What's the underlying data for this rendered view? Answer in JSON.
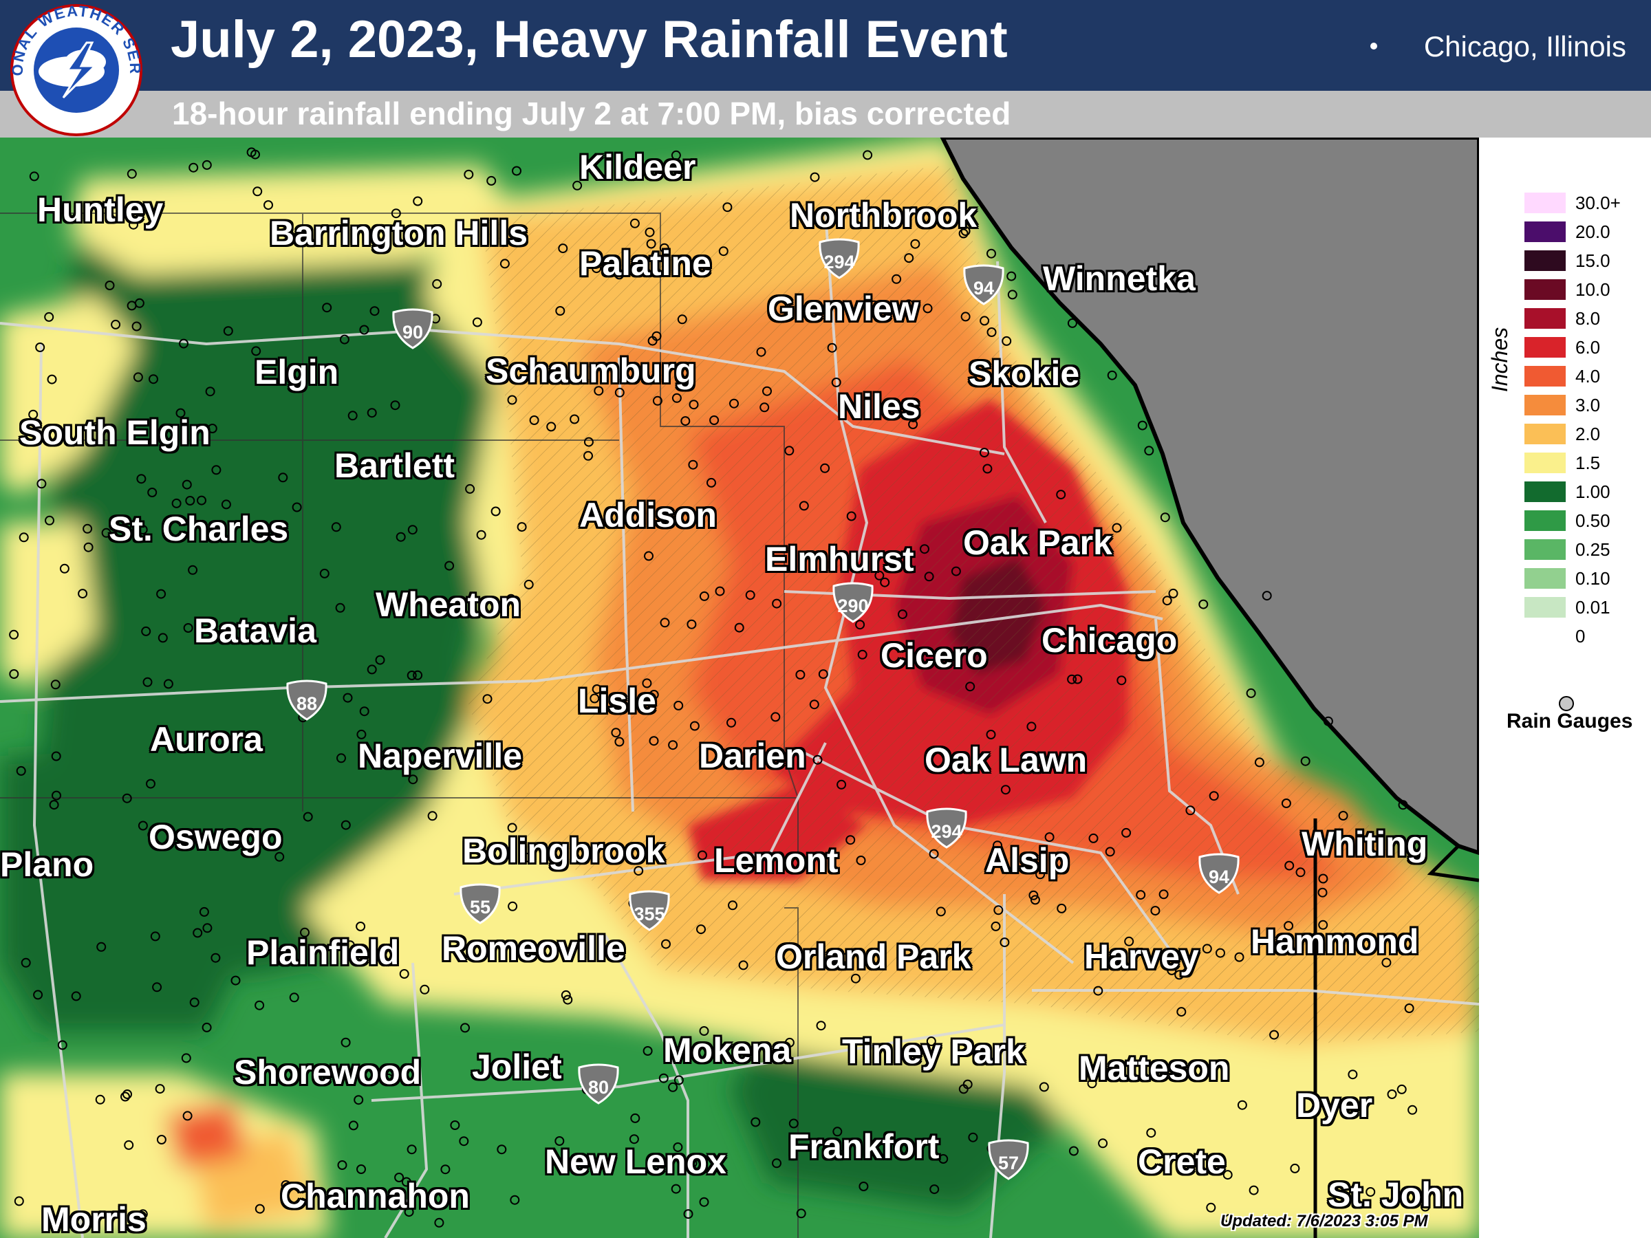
{
  "header": {
    "title": "July 2, 2023, Heavy Rainfall Event",
    "subtitle": "18-hour rainfall ending July 2 at 7:00 PM, bias corrected",
    "location": "Chicago, Illinois",
    "logo_text": "NATIONAL WEATHER SERVICE"
  },
  "cities": [
    {
      "name": "Huntley"
    },
    {
      "name": "Barrington Hills"
    },
    {
      "name": "Kildeer"
    },
    {
      "name": "Palatine"
    },
    {
      "name": "Northbrook"
    },
    {
      "name": "Winnetka"
    },
    {
      "name": "Glenview"
    },
    {
      "name": "Elgin"
    },
    {
      "name": "Schaumburg"
    },
    {
      "name": "Niles"
    },
    {
      "name": "Skokie"
    },
    {
      "name": "South Elgin"
    },
    {
      "name": "Bartlett"
    },
    {
      "name": "Addison"
    },
    {
      "name": "St. Charles"
    },
    {
      "name": "Elmhurst"
    },
    {
      "name": "Oak Park"
    },
    {
      "name": "Wheaton"
    },
    {
      "name": "Batavia"
    },
    {
      "name": "Chicago"
    },
    {
      "name": "Cicero"
    },
    {
      "name": "Lisle"
    },
    {
      "name": "Aurora"
    },
    {
      "name": "Naperville"
    },
    {
      "name": "Darien"
    },
    {
      "name": "Oak Lawn"
    },
    {
      "name": "Oswego"
    },
    {
      "name": "Plano"
    },
    {
      "name": "Bolingbrook"
    },
    {
      "name": "Lemont"
    },
    {
      "name": "Alsip"
    },
    {
      "name": "Whiting"
    },
    {
      "name": "Plainfield"
    },
    {
      "name": "Romeoville"
    },
    {
      "name": "Orland Park"
    },
    {
      "name": "Harvey"
    },
    {
      "name": "Hammond"
    },
    {
      "name": "Shorewood"
    },
    {
      "name": "Joliet"
    },
    {
      "name": "Mokena"
    },
    {
      "name": "Tinley Park"
    },
    {
      "name": "Matteson"
    },
    {
      "name": "Dyer"
    },
    {
      "name": "New Lenox"
    },
    {
      "name": "Frankfort"
    },
    {
      "name": "Crete"
    },
    {
      "name": "Channahon"
    },
    {
      "name": "Morris"
    },
    {
      "name": "St. John"
    }
  ],
  "interstates": [
    "294",
    "94",
    "90",
    "290",
    "88",
    "294",
    "94",
    "55",
    "355",
    "80",
    "57"
  ],
  "legend": {
    "unit": "Inches",
    "entries": [
      {
        "label": "30.0+",
        "color": "#ffd9ff"
      },
      {
        "label": "20.0",
        "color": "#4b0d6b"
      },
      {
        "label": "15.0",
        "color": "#2e0a1f"
      },
      {
        "label": "10.0",
        "color": "#6b0a24"
      },
      {
        "label": "8.0",
        "color": "#a8102a"
      },
      {
        "label": "6.0",
        "color": "#d9232a"
      },
      {
        "label": "4.0",
        "color": "#f05a32"
      },
      {
        "label": "3.0",
        "color": "#f58c3c"
      },
      {
        "label": "2.0",
        "color": "#fbbf56"
      },
      {
        "label": "1.5",
        "color": "#faf08c"
      },
      {
        "label": "1.00",
        "color": "#126b2e"
      },
      {
        "label": "0.50",
        "color": "#2f9a46"
      },
      {
        "label": "0.25",
        "color": "#5ab665"
      },
      {
        "label": "0.10",
        "color": "#92d08f"
      },
      {
        "label": "0.01",
        "color": "#c8e7c3"
      },
      {
        "label": "0",
        "color": "#ffffff"
      }
    ],
    "gauge_label": "Rain Gauges"
  },
  "updated": "Updated: 7/6/2023 3:05 PM"
}
